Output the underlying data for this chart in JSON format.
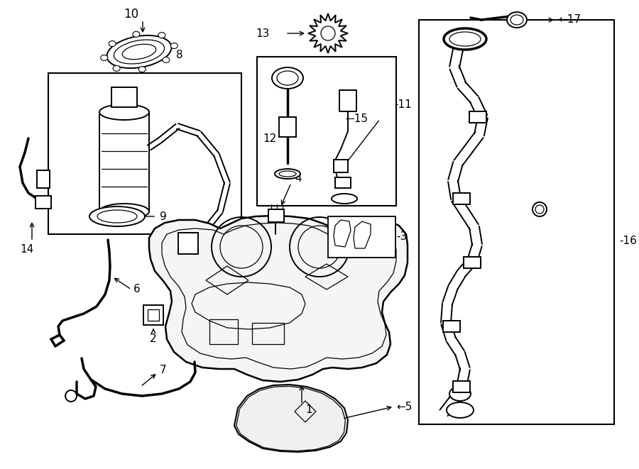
{
  "bg_color": "#ffffff",
  "line_color": "#000000",
  "figsize": [
    9.0,
    6.61
  ],
  "dpi": 100,
  "lw_main": 1.4,
  "lw_thick": 2.5,
  "lw_thin": 0.9
}
